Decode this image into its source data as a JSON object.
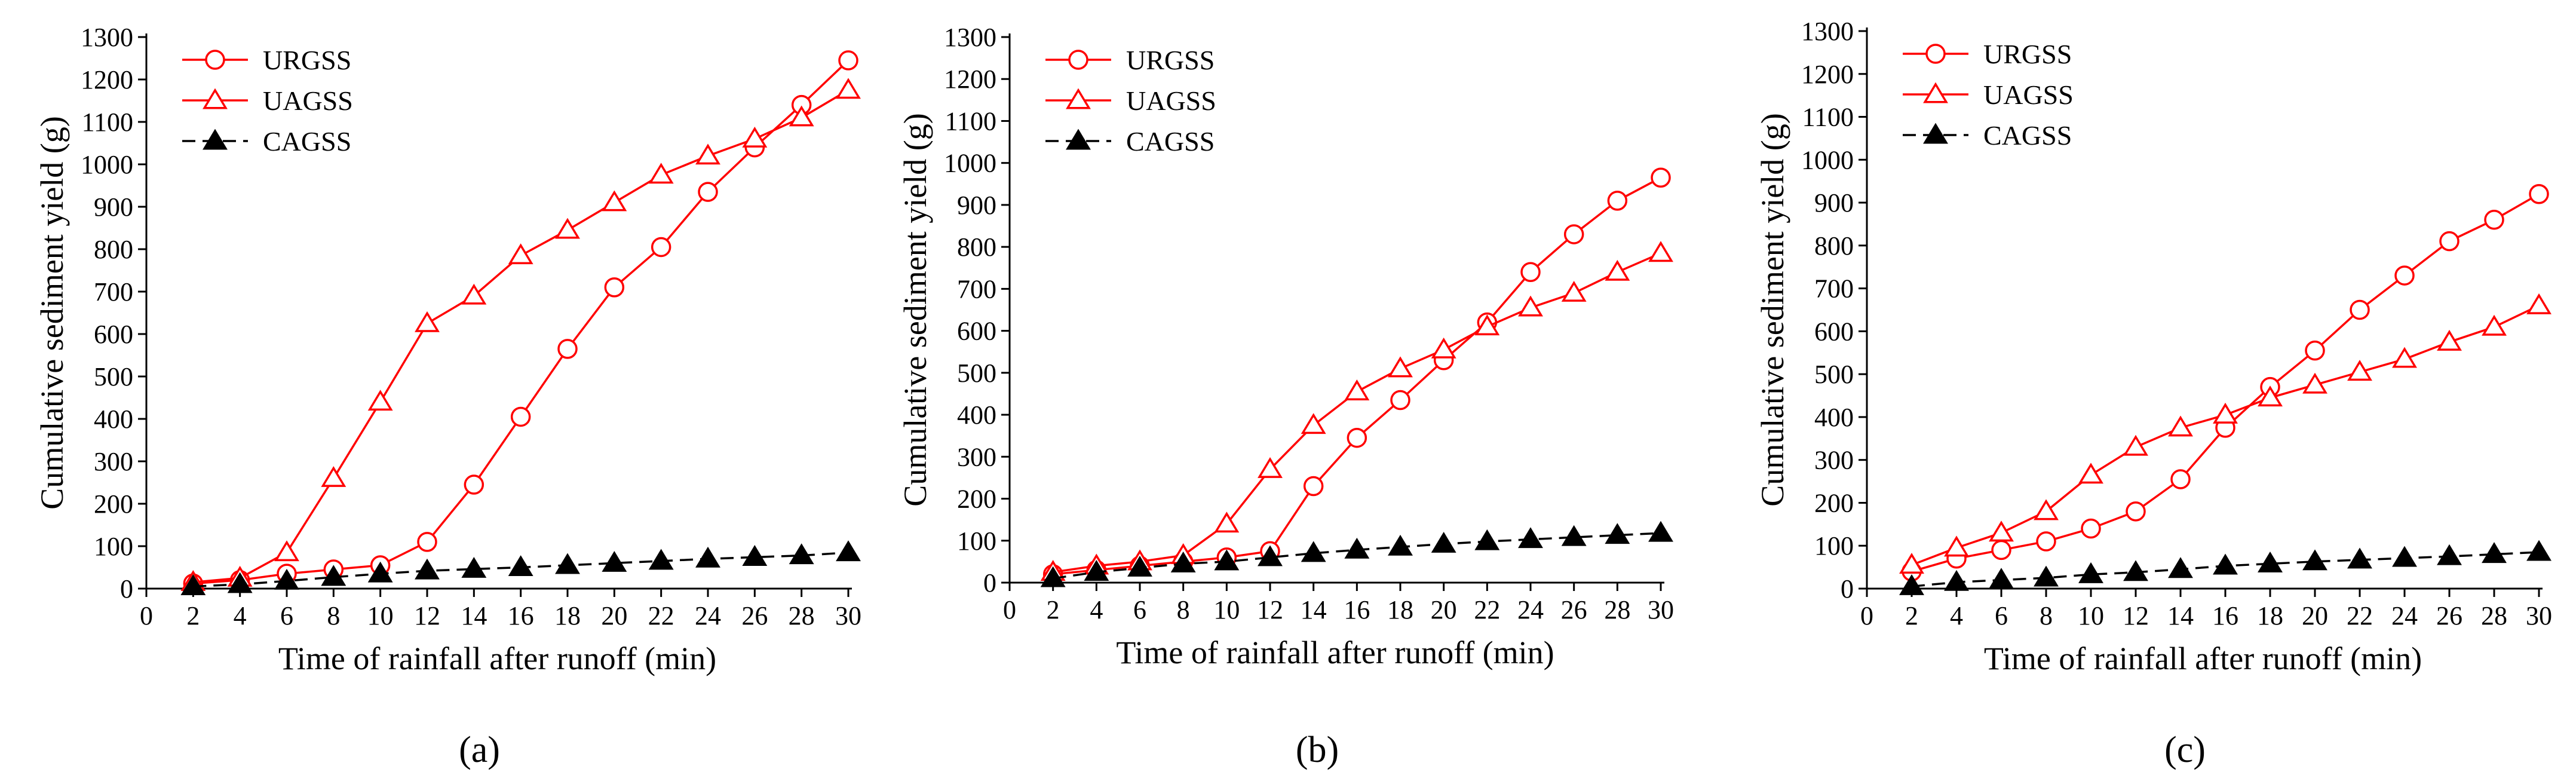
{
  "chart_data": [
    {
      "type": "line",
      "panel_label": "(a)",
      "xlabel": "Time of rainfall after runoff (min)",
      "ylabel": "Cumulative sediment yield (g)",
      "xlim": [
        0,
        30
      ],
      "ylim": [
        0,
        1300
      ],
      "xticks": [
        0,
        2,
        4,
        6,
        8,
        10,
        12,
        14,
        16,
        18,
        20,
        22,
        24,
        26,
        28,
        30
      ],
      "yticks": [
        0,
        100,
        200,
        300,
        400,
        500,
        600,
        700,
        800,
        900,
        1000,
        1100,
        1200,
        1300
      ],
      "legend_position": "top-left",
      "x": [
        2,
        4,
        6,
        8,
        10,
        12,
        14,
        16,
        18,
        20,
        22,
        24,
        26,
        28,
        30
      ],
      "series": [
        {
          "name": "URGSS",
          "marker": "open-circle",
          "color": "#ff0000",
          "dash": "solid",
          "values": [
            12,
            20,
            35,
            45,
            55,
            110,
            245,
            405,
            565,
            710,
            805,
            935,
            1040,
            1140,
            1245
          ]
        },
        {
          "name": "UAGSS",
          "marker": "open-triangle",
          "color": "#ff0000",
          "dash": "solid",
          "values": [
            15,
            25,
            85,
            260,
            440,
            625,
            690,
            785,
            845,
            910,
            975,
            1020,
            1060,
            1110,
            1175
          ]
        },
        {
          "name": "CAGSS",
          "marker": "filled-triangle",
          "color": "#000000",
          "dash": "dashed",
          "values": [
            5,
            10,
            18,
            27,
            35,
            42,
            46,
            50,
            55,
            60,
            65,
            70,
            74,
            78,
            85
          ]
        }
      ]
    },
    {
      "type": "line",
      "panel_label": "(b)",
      "xlabel": "Time of rainfall after runoff (min)",
      "ylabel": "Cumulative sediment yield (g)",
      "xlim": [
        0,
        30
      ],
      "ylim": [
        0,
        1300
      ],
      "xticks": [
        0,
        2,
        4,
        6,
        8,
        10,
        12,
        14,
        16,
        18,
        20,
        22,
        24,
        26,
        28,
        30
      ],
      "yticks": [
        0,
        100,
        200,
        300,
        400,
        500,
        600,
        700,
        800,
        900,
        1000,
        1100,
        1200,
        1300
      ],
      "legend_position": "top-left",
      "x": [
        2,
        4,
        6,
        8,
        10,
        12,
        14,
        16,
        18,
        20,
        22,
        24,
        26,
        28,
        30
      ],
      "series": [
        {
          "name": "URGSS",
          "marker": "open-circle",
          "color": "#ff0000",
          "dash": "solid",
          "values": [
            20,
            30,
            40,
            50,
            60,
            75,
            230,
            345,
            435,
            530,
            620,
            740,
            830,
            910,
            965
          ]
        },
        {
          "name": "UAGSS",
          "marker": "open-triangle",
          "color": "#ff0000",
          "dash": "solid",
          "values": [
            25,
            40,
            50,
            65,
            140,
            270,
            375,
            455,
            510,
            555,
            610,
            655,
            690,
            740,
            785
          ]
        },
        {
          "name": "CAGSS",
          "marker": "filled-triangle",
          "color": "#000000",
          "dash": "dashed",
          "values": [
            10,
            25,
            35,
            45,
            50,
            60,
            70,
            78,
            85,
            92,
            98,
            103,
            108,
            113,
            118
          ]
        }
      ]
    },
    {
      "type": "line",
      "panel_label": "(c)",
      "xlabel": "Time of rainfall after runoff (min)",
      "ylabel": "Cumulative sediment yield (g)",
      "xlim": [
        0,
        30
      ],
      "ylim": [
        0,
        1300
      ],
      "xticks": [
        0,
        2,
        4,
        6,
        8,
        10,
        12,
        14,
        16,
        18,
        20,
        22,
        24,
        26,
        28,
        30
      ],
      "yticks": [
        0,
        100,
        200,
        300,
        400,
        500,
        600,
        700,
        800,
        900,
        1000,
        1100,
        1200,
        1300
      ],
      "legend_position": "top-left",
      "x": [
        2,
        4,
        6,
        8,
        10,
        12,
        14,
        16,
        18,
        20,
        22,
        24,
        26,
        28,
        30
      ],
      "series": [
        {
          "name": "URGSS",
          "marker": "open-circle",
          "color": "#ff0000",
          "dash": "solid",
          "values": [
            40,
            70,
            90,
            110,
            140,
            180,
            255,
            375,
            470,
            555,
            650,
            730,
            810,
            860,
            920
          ]
        },
        {
          "name": "UAGSS",
          "marker": "open-triangle",
          "color": "#ff0000",
          "dash": "solid",
          "values": [
            55,
            95,
            130,
            180,
            265,
            330,
            375,
            405,
            445,
            475,
            505,
            535,
            575,
            610,
            660
          ]
        },
        {
          "name": "CAGSS",
          "marker": "filled-triangle",
          "color": "#000000",
          "dash": "dashed",
          "values": [
            5,
            15,
            20,
            25,
            33,
            38,
            45,
            53,
            58,
            63,
            67,
            71,
            75,
            80,
            85
          ]
        }
      ]
    }
  ]
}
